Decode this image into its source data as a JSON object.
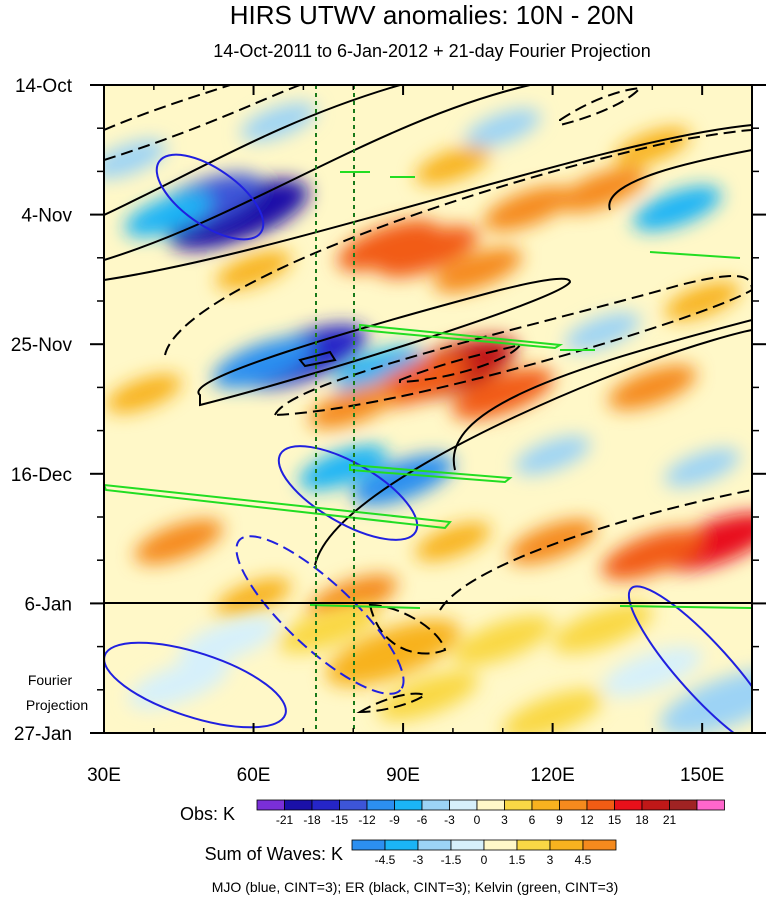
{
  "chart_data": {
    "type": "heatmap",
    "title": "HIRS UTWV anomalies: 10N - 20N",
    "subtitle": "14-Oct-2011 to 6-Jan-2012 + 21-day Fourier Projection",
    "x_tick_labels": [
      "30E",
      "60E",
      "90E",
      "120E",
      "150E"
    ],
    "x_ticks_deg": [
      30,
      60,
      90,
      120,
      150
    ],
    "x_range_deg": [
      30,
      160
    ],
    "y_tick_labels": [
      "14-Oct",
      "4-Nov",
      "25-Nov",
      "16-Dec",
      "6-Jan",
      "27-Jan"
    ],
    "y_ticks_day": [
      0,
      21,
      42,
      63,
      84,
      105
    ],
    "y_range_day": [
      0,
      105
    ],
    "projection_start_day": 84,
    "projection_label_line1": "Fourier",
    "projection_label_line2": "Projection",
    "reference_longitudes_deg": [
      72,
      80
    ],
    "obs_colorbar": {
      "label": "Obs: K",
      "labels": [
        "-21",
        "-18",
        "-15",
        "-12",
        "-9",
        "-6",
        "-3",
        "0",
        "3",
        "6",
        "9",
        "12",
        "15",
        "18",
        "21"
      ],
      "colors": [
        "#7a2fd8",
        "#1a10a8",
        "#2525c8",
        "#3d55d8",
        "#2c8ff0",
        "#1bb4f5",
        "#9cd3f5",
        "#d6f0fb",
        "#fff8c8",
        "#f9d845",
        "#f8b21f",
        "#f58a1d",
        "#f25c14",
        "#e8101a",
        "#c01818",
        "#a02323",
        "#ff66cc"
      ]
    },
    "waves_colorbar": {
      "label": "Sum of Waves: K",
      "labels": [
        "-4.5",
        "-3",
        "-1.5",
        "0",
        "1.5",
        "3",
        "4.5"
      ],
      "colors": [
        "#2c8ff0",
        "#1bb4f5",
        "#9cd3f5",
        "#d6f0fb",
        "#fff8c8",
        "#f9d845",
        "#f8b21f",
        "#f58a1d"
      ]
    },
    "legend_text": "MJO (blue, CINT=3); ER (black, CINT=3); Kelvin (green, CINT=3)",
    "wave_colors": {
      "MJO": "#2020e0",
      "ER": "#000000",
      "Kelvin": "#22dd22",
      "reference": "#1a7a1a"
    },
    "obs_anomalies": [
      {
        "lon": 57,
        "day": 21,
        "value": -21
      },
      {
        "lon": 50,
        "day": 19,
        "value": -15
      },
      {
        "lon": 43,
        "day": 21,
        "value": -9
      },
      {
        "lon": 65,
        "day": 6,
        "value": -6
      },
      {
        "lon": 35,
        "day": 12,
        "value": -6
      },
      {
        "lon": 70,
        "day": 44,
        "value": -18
      },
      {
        "lon": 62,
        "day": 45,
        "value": -12
      },
      {
        "lon": 85,
        "day": 46,
        "value": -9
      },
      {
        "lon": 90,
        "day": 64,
        "value": -12
      },
      {
        "lon": 78,
        "day": 62,
        "value": -9
      },
      {
        "lon": 120,
        "day": 60,
        "value": -6
      },
      {
        "lon": 130,
        "day": 40,
        "value": -6
      },
      {
        "lon": 145,
        "day": 20,
        "value": -9
      },
      {
        "lon": 150,
        "day": 62,
        "value": -6
      },
      {
        "lon": 110,
        "day": 7,
        "value": -6
      },
      {
        "lon": 100,
        "day": 46,
        "value": 18
      },
      {
        "lon": 93,
        "day": 48,
        "value": 12
      },
      {
        "lon": 110,
        "day": 50,
        "value": 12
      },
      {
        "lon": 80,
        "day": 52,
        "value": 9
      },
      {
        "lon": 95,
        "day": 27,
        "value": 12
      },
      {
        "lon": 87,
        "day": 26,
        "value": 12
      },
      {
        "lon": 105,
        "day": 30,
        "value": 9
      },
      {
        "lon": 115,
        "day": 20,
        "value": 9
      },
      {
        "lon": 130,
        "day": 17,
        "value": 9
      },
      {
        "lon": 153,
        "day": 74,
        "value": 15
      },
      {
        "lon": 140,
        "day": 76,
        "value": 12
      },
      {
        "lon": 120,
        "day": 74,
        "value": 9
      },
      {
        "lon": 100,
        "day": 74,
        "value": 6
      },
      {
        "lon": 45,
        "day": 74,
        "value": 9
      },
      {
        "lon": 38,
        "day": 50,
        "value": 6
      },
      {
        "lon": 140,
        "day": 49,
        "value": 9
      },
      {
        "lon": 150,
        "day": 35,
        "value": 6
      },
      {
        "lon": 60,
        "day": 30,
        "value": 6
      },
      {
        "lon": 100,
        "day": 13,
        "value": 6
      },
      {
        "lon": 140,
        "day": 10,
        "value": 6
      },
      {
        "lon": 80,
        "day": 83,
        "value": 9
      },
      {
        "lon": 60,
        "day": 83,
        "value": 6
      }
    ],
    "fourier_projection": [
      {
        "lon": 88,
        "day": 92,
        "value": 3
      },
      {
        "lon": 75,
        "day": 88,
        "value": 1.5
      },
      {
        "lon": 95,
        "day": 99,
        "value": 1.5
      },
      {
        "lon": 110,
        "day": 90,
        "value": 1.5
      },
      {
        "lon": 45,
        "day": 97,
        "value": -1.5
      },
      {
        "lon": 55,
        "day": 90,
        "value": -1.5
      },
      {
        "lon": 140,
        "day": 95,
        "value": -1.5
      },
      {
        "lon": 155,
        "day": 100,
        "value": -3
      },
      {
        "lon": 120,
        "day": 102,
        "value": 1.5
      },
      {
        "lon": 130,
        "day": 88,
        "value": 1.5
      }
    ]
  }
}
